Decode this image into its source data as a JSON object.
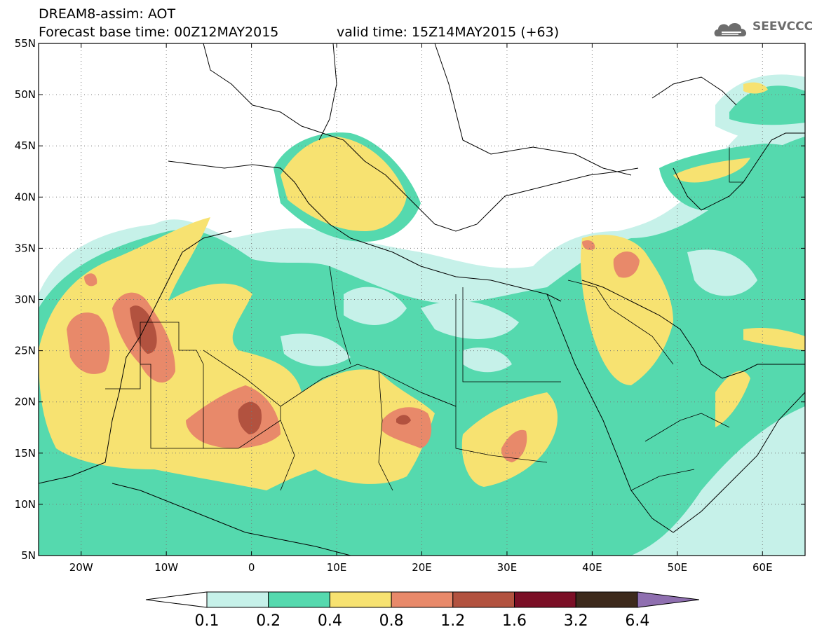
{
  "header": {
    "model_product": "DREAM8-assim: AOT",
    "forecast_base": "Forecast base time: 00Z12MAY2015",
    "valid_time": "valid time: 15Z14MAY2015 (+63)"
  },
  "logo": {
    "text": "SEEVCCC",
    "icon": "cloud-logo-icon",
    "color": "#6d6d6d"
  },
  "map": {
    "projection": "cylindrical lat-lon",
    "lon_range": [
      -25,
      65
    ],
    "lat_range": [
      5,
      55
    ],
    "lat_ticks": [
      "5N",
      "10N",
      "15N",
      "20N",
      "25N",
      "30N",
      "35N",
      "40N",
      "45N",
      "50N",
      "55N"
    ],
    "lon_ticks": [
      "20W",
      "10W",
      "0",
      "10E",
      "20E",
      "30E",
      "40E",
      "50E",
      "60E"
    ],
    "grid": "dotted"
  },
  "colorbar": {
    "levels": [
      "0.1",
      "0.2",
      "0.4",
      "0.8",
      "1.2",
      "1.6",
      "3.2",
      "6.4"
    ],
    "colors": [
      "#ffffff",
      "#c6f1e9",
      "#55d9ae",
      "#f7e271",
      "#e8896a",
      "#b2523f",
      "#7b0f26",
      "#3d2a1c",
      "#8f6fb0"
    ]
  }
}
